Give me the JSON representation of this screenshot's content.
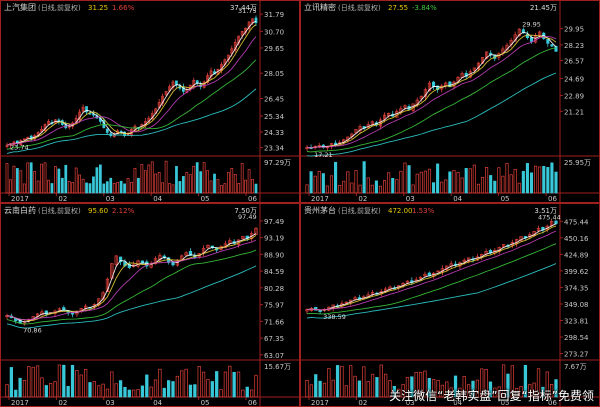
{
  "chart_data": [
    {
      "type": "line",
      "title": "上汽集团",
      "subtitle": "(日线,前复权)",
      "last_price": "31.25",
      "change_pct": "1.66%",
      "change_color": "#e0403a",
      "x_ticks": [
        "2017",
        "02",
        "03",
        "04",
        "05",
        "06"
      ],
      "y_ticks": [
        "31.79",
        "30.70",
        "29.65",
        "28.05",
        "26.45",
        "25.34",
        "24.33",
        "23.34"
      ],
      "ylim": [
        23.0,
        31.8
      ],
      "vol_max": "37.44万",
      "vol_label": "97.29万",
      "hi_label": "31.75",
      "lo_label": "23.74",
      "close": [
        23.5,
        23.6,
        23.7,
        23.6,
        23.8,
        23.9,
        24.0,
        23.9,
        24.1,
        24.3,
        24.5,
        24.8,
        25.0,
        24.9,
        25.1,
        25.0,
        24.8,
        24.6,
        24.7,
        24.9,
        25.2,
        25.6,
        25.9,
        25.6,
        25.5,
        25.4,
        25.2,
        25.0,
        24.6,
        24.3,
        24.1,
        24.2,
        24.4,
        24.3,
        24.1,
        24.2,
        24.5,
        24.7,
        24.6,
        24.8,
        25.0,
        25.2,
        25.5,
        25.8,
        26.2,
        26.6,
        26.9,
        27.2,
        27.5,
        27.3,
        27.1,
        26.9,
        27.0,
        27.3,
        27.6,
        27.4,
        27.2,
        27.5,
        27.9,
        28.2,
        28.0,
        28.3,
        28.6,
        28.9,
        29.2,
        29.6,
        30.0,
        30.4,
        30.7,
        30.9,
        31.3,
        31.5,
        31.25
      ],
      "ma_colors": [
        "#ffffff",
        "#e8d23a",
        "#c440c0",
        "#3cc83c",
        "#30d0d0"
      ]
    },
    {
      "type": "line",
      "title": "立讯精密",
      "subtitle": "(日线,前复权)",
      "last_price": "27.55",
      "change_pct": "-3.84%",
      "change_color": "#3cc83c",
      "x_ticks": [
        "2017",
        "02",
        "03",
        "04",
        "05",
        "06"
      ],
      "y_ticks": [
        "29.95",
        "28.23",
        "26.57",
        "24.69",
        "22.89",
        "21.21"
      ],
      "ylim": [
        16.8,
        31.5
      ],
      "vol_max": "21.45万",
      "vol_label": "25.95万",
      "hi_label": "29.95",
      "lo_label": "17.21",
      "close": [
        17.4,
        17.3,
        17.5,
        17.6,
        17.4,
        17.5,
        17.8,
        17.7,
        17.9,
        18.2,
        18.5,
        18.8,
        19.3,
        19.6,
        19.4,
        19.8,
        20.1,
        19.8,
        20.3,
        20.8,
        21.0,
        20.7,
        21.2,
        21.5,
        21.8,
        21.4,
        22.0,
        22.4,
        22.8,
        23.5,
        24.2,
        23.8,
        23.5,
        23.9,
        24.2,
        23.8,
        24.3,
        24.8,
        25.2,
        24.9,
        25.4,
        25.8,
        26.3,
        26.9,
        27.5,
        27.2,
        26.8,
        27.3,
        27.8,
        28.2,
        28.7,
        29.3,
        29.9,
        29.5,
        29.0,
        28.6,
        29.2,
        29.6,
        28.9,
        28.4,
        28.1,
        27.55
      ],
      "ma_colors": [
        "#ffffff",
        "#e8d23a",
        "#c440c0",
        "#3cc83c",
        "#30d0d0"
      ]
    },
    {
      "type": "line",
      "title": "云南白药",
      "subtitle": "(日线,前复权)",
      "last_price": "95.60",
      "change_pct": "2.12%",
      "change_color": "#e0403a",
      "x_ticks": [
        "2017",
        "02",
        "03",
        "04",
        "05",
        "06"
      ],
      "y_ticks": [
        "97.49",
        "93.19",
        "88.90",
        "84.59",
        "80.28",
        "75.97",
        "71.66",
        "67.35",
        "63.07"
      ],
      "ylim": [
        62.5,
        98.5
      ],
      "vol_max": "7.50万",
      "vol_label": "15.67万",
      "hi_label": "97.49",
      "lo_label": "70.86",
      "close": [
        73.2,
        72.6,
        71.8,
        71.2,
        71.6,
        72.2,
        72.9,
        73.6,
        74.1,
        73.5,
        73.9,
        74.3,
        74.9,
        74.5,
        74.0,
        73.6,
        74.2,
        75.0,
        75.6,
        75.2,
        76.0,
        77.5,
        79.0,
        82.5,
        86.5,
        88.5,
        87.0,
        86.0,
        85.5,
        86.2,
        87.2,
        86.6,
        85.9,
        86.5,
        87.8,
        88.6,
        88.0,
        86.8,
        86.2,
        87.4,
        88.5,
        89.3,
        88.6,
        88.1,
        89.1,
        90.4,
        91.2,
        90.6,
        90.0,
        90.9,
        91.6,
        92.4,
        91.7,
        92.6,
        93.5,
        93.0,
        94.2,
        95.6
      ],
      "ma_colors": [
        "#ffffff",
        "#e8d23a",
        "#c440c0",
        "#3cc83c",
        "#30d0d0"
      ]
    },
    {
      "type": "line",
      "title": "贵州茅台",
      "subtitle": "(日线,前复权)",
      "last_price": "472.00",
      "change_pct": "1.53%",
      "change_color": "#e0403a",
      "x_ticks": [
        "2017",
        "02",
        "03",
        "04",
        "05",
        "06"
      ],
      "y_ticks": [
        "475.44",
        "450.16",
        "424.89",
        "399.62",
        "374.35",
        "349.08",
        "323.81",
        "298.54",
        "273.27"
      ],
      "ylim": [
        268.0,
        482.0
      ],
      "vol_max": "3.51万",
      "vol_label": "7.67万",
      "hi_label": "475.44",
      "lo_label": "338.59",
      "close": [
        340.5,
        342.0,
        339.5,
        338.6,
        341.0,
        344.0,
        347.5,
        346.0,
        349.5,
        352.0,
        355.0,
        358.5,
        356.0,
        360.0,
        363.0,
        366.5,
        365.0,
        368.0,
        372.0,
        375.0,
        373.5,
        377.0,
        380.5,
        384.0,
        382.0,
        386.0,
        390.0,
        394.5,
        392.0,
        396.0,
        399.5,
        403.0,
        407.0,
        410.5,
        408.0,
        412.0,
        416.0,
        419.5,
        417.5,
        421.0,
        425.0,
        429.5,
        427.0,
        431.0,
        435.5,
        440.0,
        438.5,
        443.0,
        447.5,
        452.0,
        450.0,
        455.0,
        460.0,
        464.5,
        462.0,
        468.0,
        475.4,
        472.0
      ],
      "ma_colors": [
        "#ffffff",
        "#e8d23a",
        "#c440c0",
        "#3cc83c",
        "#30d0d0"
      ]
    }
  ],
  "watermark": "关注微信“老韩实盘”回复“指标”免费领",
  "colors": {
    "up": "#e0403a",
    "down": "#38c8d8",
    "axis": "#a02020",
    "text": "#c8c8c8",
    "accent": "#e6c800"
  }
}
